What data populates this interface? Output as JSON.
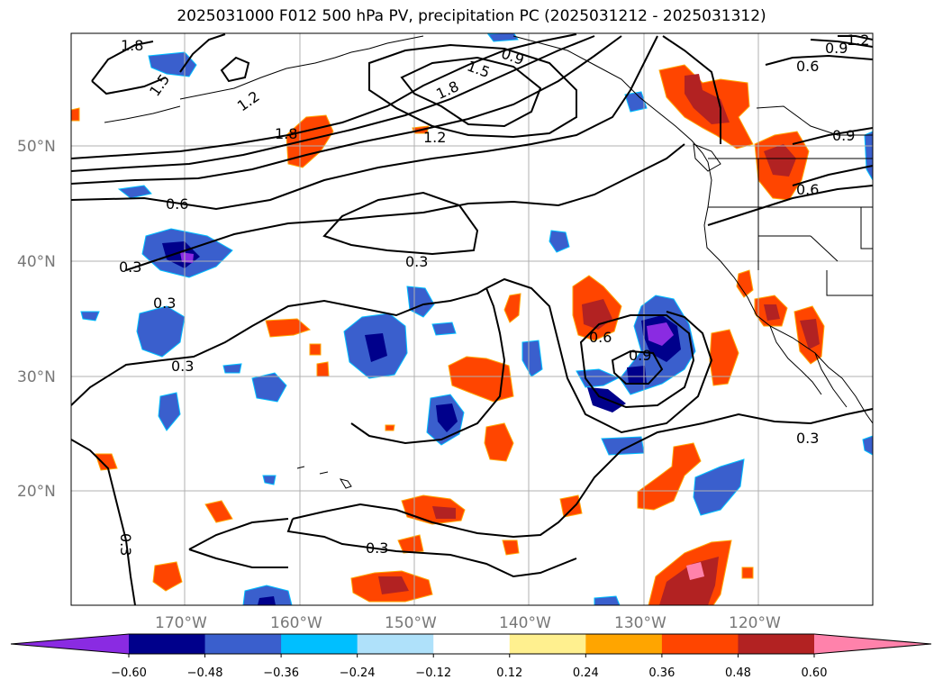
{
  "title": "2025031000 F012 500 hPa PV, precipitation PC (2025031212 - 2025031312)",
  "lat_labels": [
    "50°N",
    "40°N",
    "30°N",
    "20°N"
  ],
  "lon_labels": [
    "170°W",
    "160°W",
    "150°W",
    "140°W",
    "130°W",
    "120°W"
  ],
  "contour_labels": [
    "1.8",
    "1.5",
    "1.2",
    "1.8",
    "1.8",
    "1.5",
    "1.2",
    "0.9",
    "0.6",
    "0.9",
    "1.2",
    "0.6",
    "0.3",
    "0.3",
    "0.3",
    "0.3",
    "0.6",
    "0.9",
    "0.3",
    "0.3",
    "0.6",
    "0.9",
    "0.3"
  ],
  "colorbar": {
    "ticks": [
      "−0.60",
      "−0.48",
      "−0.36",
      "−0.24",
      "−0.12",
      "0.12",
      "0.24",
      "0.36",
      "0.48",
      "0.60"
    ],
    "colors": [
      "#8a2be2",
      "#00008b",
      "#3a5fcd",
      "#00bfff",
      "#afe1fa",
      "#ffffff",
      "#fff08f",
      "#ffa500",
      "#ff4500",
      "#b22222",
      "#ff82ab"
    ]
  }
}
